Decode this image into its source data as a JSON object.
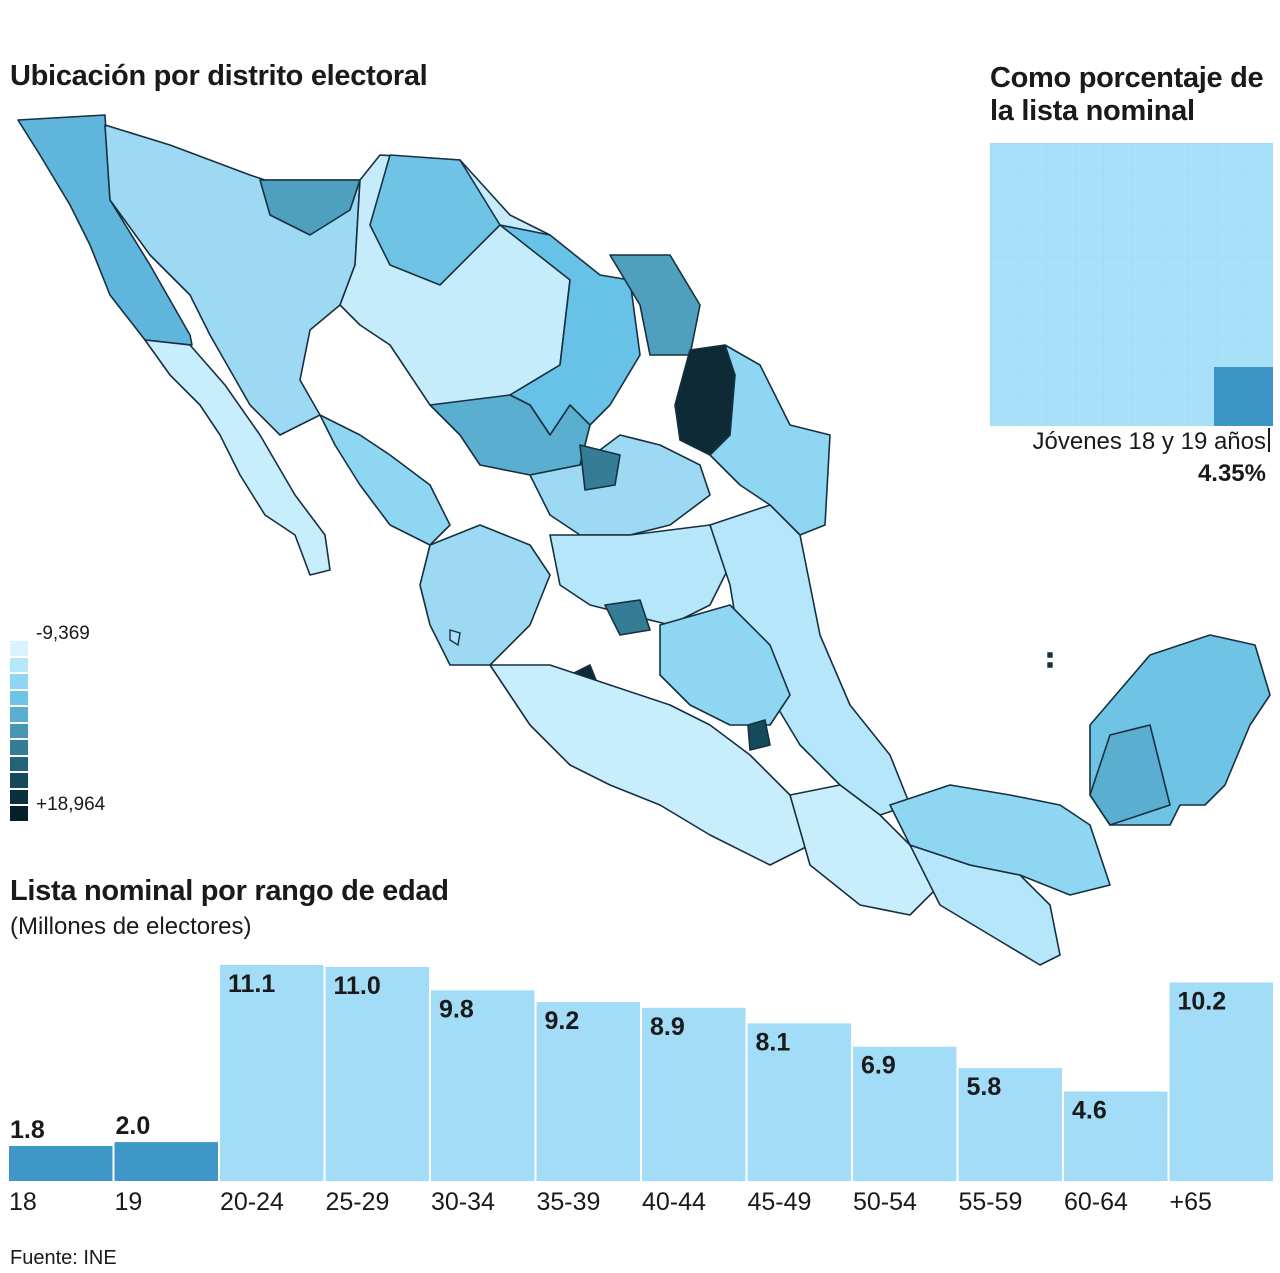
{
  "map": {
    "title": "Ubicación por distrito electoral",
    "legend": {
      "min_label": "-9,369",
      "max_label": "+18,964",
      "colors": [
        "#d9f2fd",
        "#b5e6fa",
        "#8fd6f3",
        "#6fc4e6",
        "#5aaecf",
        "#4896b4",
        "#357d97",
        "#23637a",
        "#154a5c",
        "#0b2f3c",
        "#081e28"
      ]
    }
  },
  "percentage": {
    "title": "Como porcentaje de la lista nominal",
    "label": "Jóvenes 18 y 19 años",
    "value_label": "4.35%",
    "value": 4.35
  },
  "chart_data": {
    "type": "bar",
    "title": "Lista nominal por rango de edad",
    "subtitle": "(Millones de electores)",
    "categories": [
      "18",
      "19",
      "20-24",
      "25-29",
      "30-34",
      "35-39",
      "40-44",
      "45-49",
      "50-54",
      "55-59",
      "60-64",
      "+65"
    ],
    "values": [
      1.8,
      2.0,
      11.1,
      11.0,
      9.8,
      9.2,
      8.9,
      8.1,
      6.9,
      5.8,
      4.6,
      10.2
    ],
    "value_labels": [
      "1.8",
      "2.0",
      "11.1",
      "11.0",
      "9.8",
      "9.2",
      "8.9",
      "8.1",
      "6.9",
      "5.8",
      "4.6",
      "10.2"
    ],
    "highlight_categories": [
      "18",
      "19"
    ],
    "colors": {
      "default": "#a3dcf6",
      "highlight": "#3f97c9"
    },
    "ylim": [
      0,
      11.1
    ],
    "grid": false,
    "xlabel": "",
    "ylabel": ""
  },
  "source": "Fuente: INE"
}
